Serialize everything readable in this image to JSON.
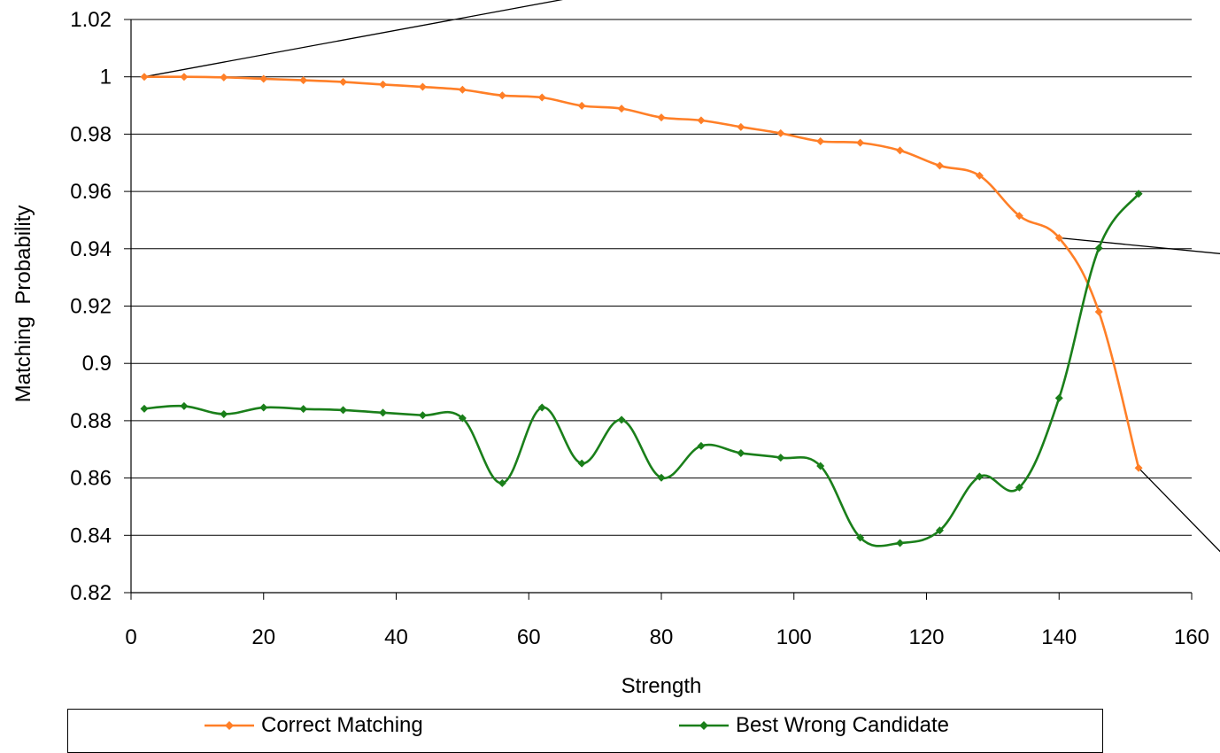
{
  "chart_data": {
    "type": "line",
    "xlabel": "Strength",
    "ylabel": "Matching  Probability",
    "xlim": [
      0,
      160
    ],
    "ylim": [
      0.82,
      1.02
    ],
    "x_ticks": [
      "0",
      "20",
      "40",
      "60",
      "80",
      "100",
      "120",
      "140",
      "160"
    ],
    "y_ticks": [
      "0.82",
      "0.84",
      "0.86",
      "0.88",
      "0.9",
      "0.92",
      "0.94",
      "0.96",
      "0.98",
      "1",
      "1.02"
    ],
    "grid": "horizontal",
    "legend_position": "bottom",
    "x": [
      2,
      8,
      14,
      20,
      26,
      32,
      38,
      44,
      50,
      56,
      62,
      68,
      74,
      80,
      86,
      92,
      98,
      104,
      110,
      116,
      122,
      128,
      134,
      140,
      146,
      152
    ],
    "series": [
      {
        "name": "Correct Matching",
        "color": "#ff7f27",
        "values": [
          1.0,
          1.0,
          0.9998,
          0.9993,
          0.9988,
          0.9982,
          0.9973,
          0.9965,
          0.9955,
          0.9935,
          0.9928,
          0.9899,
          0.9889,
          0.9858,
          0.9848,
          0.9825,
          0.9803,
          0.9775,
          0.977,
          0.9743,
          0.969,
          0.9655,
          0.9515,
          0.9438,
          0.918,
          0.8635
        ]
      },
      {
        "name": "Best Wrong Candidate",
        "color": "#1a7f1a",
        "values": [
          0.8842,
          0.8851,
          0.8823,
          0.8846,
          0.8841,
          0.8837,
          0.8828,
          0.8819,
          0.8809,
          0.8582,
          0.8846,
          0.8651,
          0.8803,
          0.8601,
          0.8712,
          0.8687,
          0.8671,
          0.8642,
          0.8392,
          0.8373,
          0.8417,
          0.8605,
          0.8567,
          0.8879,
          0.9402,
          0.9592
        ]
      }
    ]
  }
}
